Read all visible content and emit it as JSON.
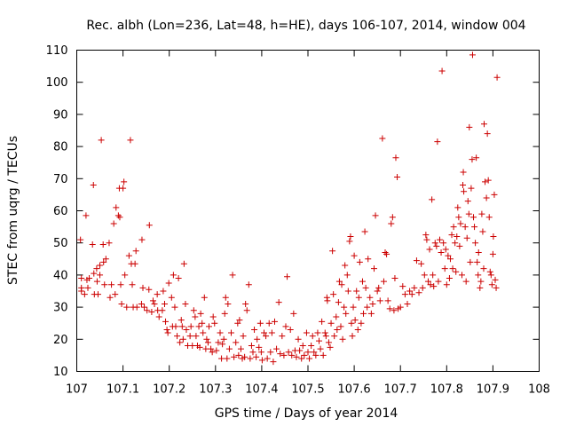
{
  "chart_data": {
    "type": "scatter",
    "title": "Rec. albh (Lon=236, Lat=48, h=HE), days 106-107, 2014, window 004",
    "xlabel": "GPS time / Days of year 2014",
    "ylabel": "STEC from uqrg / TECUs",
    "xlim": [
      107,
      108
    ],
    "ylim": [
      10,
      110
    ],
    "xticks": [
      "107",
      "107.1",
      "107.2",
      "107.3",
      "107.4",
      "107.5",
      "107.6",
      "107.7",
      "107.8",
      "107.9",
      "108"
    ],
    "yticks": [
      "10",
      "20",
      "30",
      "40",
      "50",
      "60",
      "70",
      "80",
      "90",
      "100",
      "110"
    ],
    "grid": false,
    "legend": "none",
    "marker": "plus",
    "color": "#cc0000",
    "points": [
      [
        107.008,
        51
      ],
      [
        107.01,
        39
      ],
      [
        107.01,
        36
      ],
      [
        107.01,
        35
      ],
      [
        107.017,
        34
      ],
      [
        107.02,
        58.5
      ],
      [
        107.022,
        38.5
      ],
      [
        107.024,
        36
      ],
      [
        107.027,
        39
      ],
      [
        107.034,
        49.5
      ],
      [
        107.036,
        68
      ],
      [
        107.037,
        40.5
      ],
      [
        107.038,
        34
      ],
      [
        107.043,
        42
      ],
      [
        107.044,
        38
      ],
      [
        107.046,
        34
      ],
      [
        107.05,
        43
      ],
      [
        107.05,
        40
      ],
      [
        107.053,
        82
      ],
      [
        107.057,
        49.5
      ],
      [
        107.058,
        44
      ],
      [
        107.06,
        37
      ],
      [
        107.063,
        45
      ],
      [
        107.07,
        50
      ],
      [
        107.072,
        33
      ],
      [
        107.075,
        37
      ],
      [
        107.08,
        56
      ],
      [
        107.083,
        34
      ],
      [
        107.085,
        61
      ],
      [
        107.09,
        58.5
      ],
      [
        107.092,
        67
      ],
      [
        107.093,
        58
      ],
      [
        107.095,
        37
      ],
      [
        107.097,
        31
      ],
      [
        107.1,
        67
      ],
      [
        107.102,
        69
      ],
      [
        107.104,
        40
      ],
      [
        107.108,
        30
      ],
      [
        107.113,
        46
      ],
      [
        107.116,
        82
      ],
      [
        107.118,
        43.5
      ],
      [
        107.12,
        37
      ],
      [
        107.122,
        30
      ],
      [
        107.126,
        43.5
      ],
      [
        107.128,
        47.5
      ],
      [
        107.13,
        30
      ],
      [
        107.14,
        31
      ],
      [
        107.141,
        51
      ],
      [
        107.143,
        36
      ],
      [
        107.146,
        30
      ],
      [
        107.152,
        29
      ],
      [
        107.156,
        35.5
      ],
      [
        107.157,
        55.5
      ],
      [
        107.162,
        28.5
      ],
      [
        107.165,
        32
      ],
      [
        107.168,
        31
      ],
      [
        107.174,
        34
      ],
      [
        107.175,
        29
      ],
      [
        107.178,
        27
      ],
      [
        107.185,
        29
      ],
      [
        107.187,
        35
      ],
      [
        107.19,
        31
      ],
      [
        107.192,
        25.5
      ],
      [
        107.195,
        23
      ],
      [
        107.197,
        22
      ],
      [
        107.199,
        37.5
      ],
      [
        107.205,
        33
      ],
      [
        107.207,
        24
      ],
      [
        107.209,
        40
      ],
      [
        107.212,
        30
      ],
      [
        107.214,
        24
      ],
      [
        107.217,
        21
      ],
      [
        107.22,
        39
      ],
      [
        107.223,
        19
      ],
      [
        107.226,
        26
      ],
      [
        107.228,
        24
      ],
      [
        107.23,
        20
      ],
      [
        107.232,
        43.5
      ],
      [
        107.235,
        31
      ],
      [
        107.237,
        23
      ],
      [
        107.24,
        18
      ],
      [
        107.245,
        21
      ],
      [
        107.247,
        24
      ],
      [
        107.25,
        18
      ],
      [
        107.253,
        29
      ],
      [
        107.256,
        27
      ],
      [
        107.258,
        21
      ],
      [
        107.261,
        18
      ],
      [
        107.264,
        24
      ],
      [
        107.266,
        17.5
      ],
      [
        107.268,
        28
      ],
      [
        107.271,
        25
      ],
      [
        107.273,
        22
      ],
      [
        107.276,
        33
      ],
      [
        107.279,
        17
      ],
      [
        107.281,
        20
      ],
      [
        107.284,
        19
      ],
      [
        107.286,
        24
      ],
      [
        107.29,
        17
      ],
      [
        107.293,
        16
      ],
      [
        107.295,
        27
      ],
      [
        107.298,
        25
      ],
      [
        107.302,
        16.5
      ],
      [
        107.306,
        19
      ],
      [
        107.31,
        22
      ],
      [
        107.313,
        14
      ],
      [
        107.315,
        18.5
      ],
      [
        107.318,
        20
      ],
      [
        107.32,
        28
      ],
      [
        107.322,
        33
      ],
      [
        107.325,
        14
      ],
      [
        107.327,
        31
      ],
      [
        107.33,
        17
      ],
      [
        107.334,
        22
      ],
      [
        107.337,
        40
      ],
      [
        107.34,
        14.5
      ],
      [
        107.344,
        19
      ],
      [
        107.348,
        25
      ],
      [
        107.35,
        15
      ],
      [
        107.352,
        26
      ],
      [
        107.355,
        17
      ],
      [
        107.358,
        14
      ],
      [
        107.36,
        21
      ],
      [
        107.363,
        14.5
      ],
      [
        107.365,
        31
      ],
      [
        107.368,
        29
      ],
      [
        107.372,
        37
      ],
      [
        107.375,
        14
      ],
      [
        107.378,
        18
      ],
      [
        107.381,
        16
      ],
      [
        107.384,
        23
      ],
      [
        107.388,
        14.5
      ],
      [
        107.39,
        20
      ],
      [
        107.394,
        17.5
      ],
      [
        107.397,
        25
      ],
      [
        107.399,
        16
      ],
      [
        107.401,
        13.5
      ],
      [
        107.405,
        22
      ],
      [
        107.409,
        21
      ],
      [
        107.412,
        14
      ],
      [
        107.416,
        25
      ],
      [
        107.419,
        16
      ],
      [
        107.422,
        22
      ],
      [
        107.425,
        13
      ],
      [
        107.428,
        25.5
      ],
      [
        107.432,
        17
      ],
      [
        107.437,
        31.5
      ],
      [
        107.44,
        15.5
      ],
      [
        107.444,
        21
      ],
      [
        107.448,
        15
      ],
      [
        107.452,
        24
      ],
      [
        107.455,
        39.5
      ],
      [
        107.458,
        16
      ],
      [
        107.462,
        23
      ],
      [
        107.465,
        15
      ],
      [
        107.469,
        28
      ],
      [
        107.472,
        16.5
      ],
      [
        107.475,
        14.5
      ],
      [
        107.479,
        20
      ],
      [
        107.482,
        16.5
      ],
      [
        107.486,
        14
      ],
      [
        107.489,
        18
      ],
      [
        107.492,
        15
      ],
      [
        107.497,
        22
      ],
      [
        107.5,
        16
      ],
      [
        107.503,
        14
      ],
      [
        107.507,
        18
      ],
      [
        107.51,
        21
      ],
      [
        107.513,
        16
      ],
      [
        107.517,
        15
      ],
      [
        107.521,
        22
      ],
      [
        107.524,
        19.5
      ],
      [
        107.527,
        17
      ],
      [
        107.53,
        25.5
      ],
      [
        107.533,
        15
      ],
      [
        107.537,
        22
      ],
      [
        107.539,
        21
      ],
      [
        107.541,
        33
      ],
      [
        107.542,
        32
      ],
      [
        107.545,
        19
      ],
      [
        107.548,
        17.5
      ],
      [
        107.55,
        25
      ],
      [
        107.553,
        47.5
      ],
      [
        107.555,
        34
      ],
      [
        107.557,
        21
      ],
      [
        107.561,
        27
      ],
      [
        107.563,
        23
      ],
      [
        107.566,
        31.5
      ],
      [
        107.568,
        38
      ],
      [
        107.571,
        24
      ],
      [
        107.573,
        37
      ],
      [
        107.575,
        20
      ],
      [
        107.578,
        30
      ],
      [
        107.58,
        43
      ],
      [
        107.582,
        28
      ],
      [
        107.585,
        40
      ],
      [
        107.587,
        35
      ],
      [
        107.59,
        50.5
      ],
      [
        107.592,
        52
      ],
      [
        107.594,
        25
      ],
      [
        107.596,
        21
      ],
      [
        107.598,
        30
      ],
      [
        107.6,
        46
      ],
      [
        107.602,
        26
      ],
      [
        107.605,
        35
      ],
      [
        107.608,
        23
      ],
      [
        107.61,
        33
      ],
      [
        107.612,
        44
      ],
      [
        107.615,
        25
      ],
      [
        107.618,
        38
      ],
      [
        107.62,
        28
      ],
      [
        107.623,
        53.5
      ],
      [
        107.625,
        36
      ],
      [
        107.628,
        30
      ],
      [
        107.63,
        45
      ],
      [
        107.634,
        33
      ],
      [
        107.637,
        28
      ],
      [
        107.64,
        31
      ],
      [
        107.643,
        42
      ],
      [
        107.646,
        58.5
      ],
      [
        107.65,
        35
      ],
      [
        107.653,
        36
      ],
      [
        107.656,
        32
      ],
      [
        107.661,
        82.5
      ],
      [
        107.664,
        38
      ],
      [
        107.667,
        47
      ],
      [
        107.67,
        46.5
      ],
      [
        107.673,
        32
      ],
      [
        107.677,
        29.5
      ],
      [
        107.68,
        56
      ],
      [
        107.683,
        58
      ],
      [
        107.686,
        29
      ],
      [
        107.688,
        39
      ],
      [
        107.69,
        76.5
      ],
      [
        107.693,
        70.5
      ],
      [
        107.695,
        29.5
      ],
      [
        107.7,
        30
      ],
      [
        107.705,
        36.5
      ],
      [
        107.71,
        34
      ],
      [
        107.715,
        31
      ],
      [
        107.72,
        35
      ],
      [
        107.725,
        34
      ],
      [
        107.73,
        36
      ],
      [
        107.735,
        44.5
      ],
      [
        107.74,
        34.5
      ],
      [
        107.745,
        43.5
      ],
      [
        107.748,
        36
      ],
      [
        107.752,
        40
      ],
      [
        107.755,
        52.5
      ],
      [
        107.757,
        51
      ],
      [
        107.76,
        38
      ],
      [
        107.763,
        48
      ],
      [
        107.765,
        37
      ],
      [
        107.768,
        63.5
      ],
      [
        107.77,
        40
      ],
      [
        107.772,
        36.5
      ],
      [
        107.775,
        50
      ],
      [
        107.778,
        49
      ],
      [
        107.78,
        81.5
      ],
      [
        107.782,
        38
      ],
      [
        107.785,
        51
      ],
      [
        107.788,
        47
      ],
      [
        107.79,
        103.5
      ],
      [
        107.793,
        50
      ],
      [
        107.796,
        42
      ],
      [
        107.798,
        48
      ],
      [
        107.8,
        37
      ],
      [
        107.803,
        46
      ],
      [
        107.806,
        39
      ],
      [
        107.808,
        45
      ],
      [
        107.811,
        52.5
      ],
      [
        107.813,
        42
      ],
      [
        107.815,
        55
      ],
      [
        107.818,
        50
      ],
      [
        107.82,
        41
      ],
      [
        107.822,
        52
      ],
      [
        107.824,
        61
      ],
      [
        107.826,
        58
      ],
      [
        107.828,
        49
      ],
      [
        107.83,
        56
      ],
      [
        107.833,
        40
      ],
      [
        107.835,
        68
      ],
      [
        107.836,
        72
      ],
      [
        107.837,
        66
      ],
      [
        107.84,
        55
      ],
      [
        107.842,
        38
      ],
      [
        107.844,
        51.5
      ],
      [
        107.846,
        63
      ],
      [
        107.848,
        59
      ],
      [
        107.849,
        86
      ],
      [
        107.851,
        44
      ],
      [
        107.853,
        67
      ],
      [
        107.855,
        76
      ],
      [
        107.856,
        108.5
      ],
      [
        107.858,
        58
      ],
      [
        107.86,
        55
      ],
      [
        107.862,
        50
      ],
      [
        107.864,
        76.5
      ],
      [
        107.866,
        44
      ],
      [
        107.868,
        40
      ],
      [
        107.869,
        47
      ],
      [
        107.872,
        36
      ],
      [
        107.874,
        38
      ],
      [
        107.876,
        59
      ],
      [
        107.878,
        53.5
      ],
      [
        107.88,
        42
      ],
      [
        107.881,
        87
      ],
      [
        107.883,
        69
      ],
      [
        107.886,
        64
      ],
      [
        107.888,
        84
      ],
      [
        107.89,
        69.5
      ],
      [
        107.892,
        58
      ],
      [
        107.894,
        41
      ],
      [
        107.896,
        40
      ],
      [
        107.898,
        37
      ],
      [
        107.9,
        46.5
      ],
      [
        107.901,
        52
      ],
      [
        107.903,
        65
      ],
      [
        107.905,
        38.5
      ],
      [
        107.907,
        36
      ],
      [
        107.909,
        101.5
      ]
    ]
  }
}
